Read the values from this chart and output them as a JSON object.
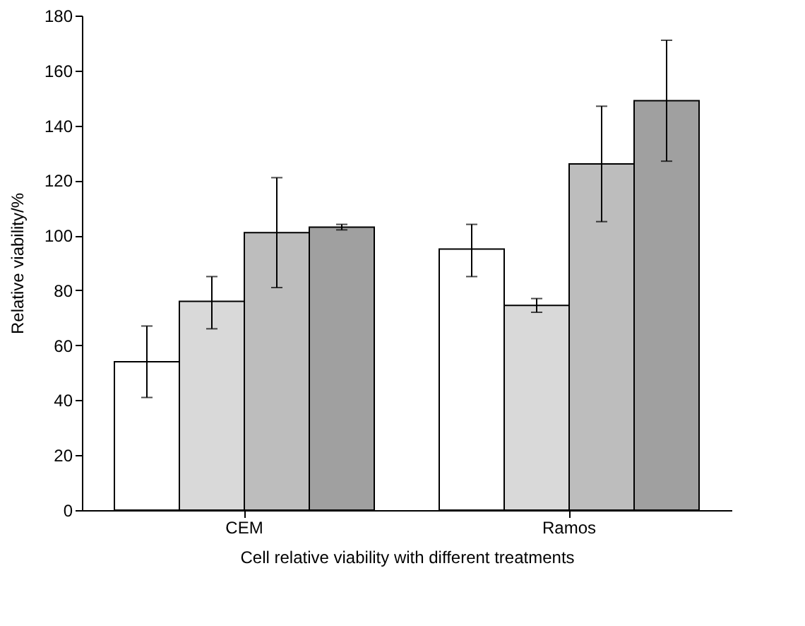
{
  "chart_data": {
    "type": "bar",
    "xlabel": "Cell relative viability with different treatments",
    "ylabel": "Relative viability/%",
    "categories": [
      "CEM",
      "Ramos"
    ],
    "series": [
      {
        "color": "#ffffff",
        "values": [
          54,
          95
        ],
        "errors": [
          [
            41,
            67
          ],
          [
            85,
            104
          ]
        ]
      },
      {
        "color": "#d9d9d9",
        "values": [
          76,
          74.5
        ],
        "errors": [
          [
            66,
            85
          ],
          [
            72,
            77
          ]
        ]
      },
      {
        "color": "#bdbdbd",
        "values": [
          101,
          126
        ],
        "errors": [
          [
            81,
            121
          ],
          [
            105,
            147
          ]
        ]
      },
      {
        "color": "#a0a0a0",
        "values": [
          103,
          149
        ],
        "errors": [
          [
            102,
            104
          ],
          [
            127,
            171
          ]
        ]
      }
    ],
    "ylim": [
      0,
      180
    ],
    "yticks": [
      0,
      20,
      40,
      60,
      80,
      100,
      120,
      140,
      160,
      180
    ],
    "grid": false,
    "legend": false
  }
}
